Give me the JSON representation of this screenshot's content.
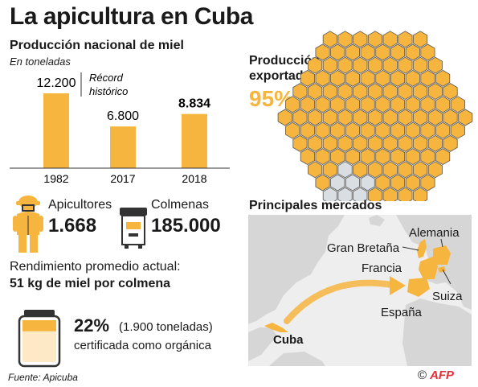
{
  "title": "La apicultura en Cuba",
  "production": {
    "title": "Producción nacional de miel",
    "subtitle": "En toneladas",
    "annotation_line1": "Récord",
    "annotation_line2": "histórico"
  },
  "chart_data": {
    "type": "bar",
    "title": "Producción nacional de miel",
    "subtitle": "En toneladas",
    "categories": [
      "1982",
      "2017",
      "2018"
    ],
    "values": [
      12200,
      6800,
      8834
    ],
    "value_labels": [
      "12.200",
      "6.800",
      "8.834"
    ],
    "highlight_index": 2,
    "ylim": [
      0,
      12200
    ],
    "color": "#f6b53f",
    "grid": false
  },
  "beekeepers": {
    "label": "Apicultores",
    "value": "1.668",
    "icon": "beekeeper-icon"
  },
  "hives": {
    "label": "Colmenas",
    "value": "185.000",
    "icon": "beehive-icon"
  },
  "yield": {
    "label": "Rendimiento promedio actual:",
    "value": "51 kg de miel por colmena"
  },
  "organic": {
    "percent": "22%",
    "tons": "(1.900 toneladas)",
    "text": "certificada como orgánica",
    "icon": "honey-jar-icon",
    "fill_fraction": 0.22
  },
  "export": {
    "title_line1": "Producción",
    "title_line2": "exportada",
    "percent": "95%",
    "fraction": 0.95,
    "colors": {
      "exported": "#f6b53f",
      "other": "#d9dee2"
    }
  },
  "markets": {
    "title": "Principales mercados",
    "origin": "Cuba",
    "destinations": [
      "Gran Bretaña",
      "Alemania",
      "Francia",
      "España",
      "Suiza"
    ]
  },
  "source": "Fuente: Apicuba",
  "credit": {
    "copyright": "©",
    "agency": "AFP"
  },
  "colors": {
    "accent": "#f6b53f",
    "dark": "#333333",
    "map_land": "#d6d6d6",
    "map_sea": "#eeeeee"
  }
}
